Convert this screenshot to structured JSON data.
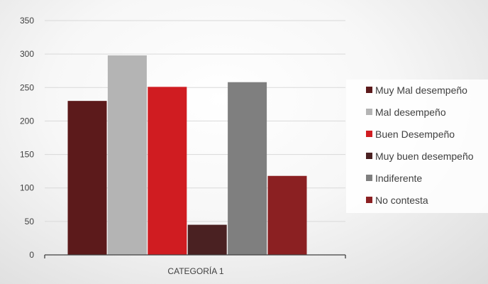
{
  "chart_data": {
    "type": "bar",
    "categories": [
      "CATEGORÍA 1"
    ],
    "series": [
      {
        "name": "Muy Mal desempeño",
        "values": [
          230
        ],
        "color": "#5c1a1b"
      },
      {
        "name": "Mal desempeño",
        "values": [
          298
        ],
        "color": "#b4b4b4"
      },
      {
        "name": "Buen Desempeño",
        "values": [
          251
        ],
        "color": "#d01c21"
      },
      {
        "name": "Muy buen desempeño",
        "values": [
          45
        ],
        "color": "#4a2122"
      },
      {
        "name": "Indiferente",
        "values": [
          258
        ],
        "color": "#7f7f7f"
      },
      {
        "name": "No contesta",
        "values": [
          118
        ],
        "color": "#8b2022"
      }
    ],
    "yticks": [
      "0",
      "50",
      "100",
      "150",
      "200",
      "250",
      "300",
      "350"
    ],
    "ylim": [
      0,
      350
    ],
    "grid": true,
    "legend_position": "right"
  }
}
